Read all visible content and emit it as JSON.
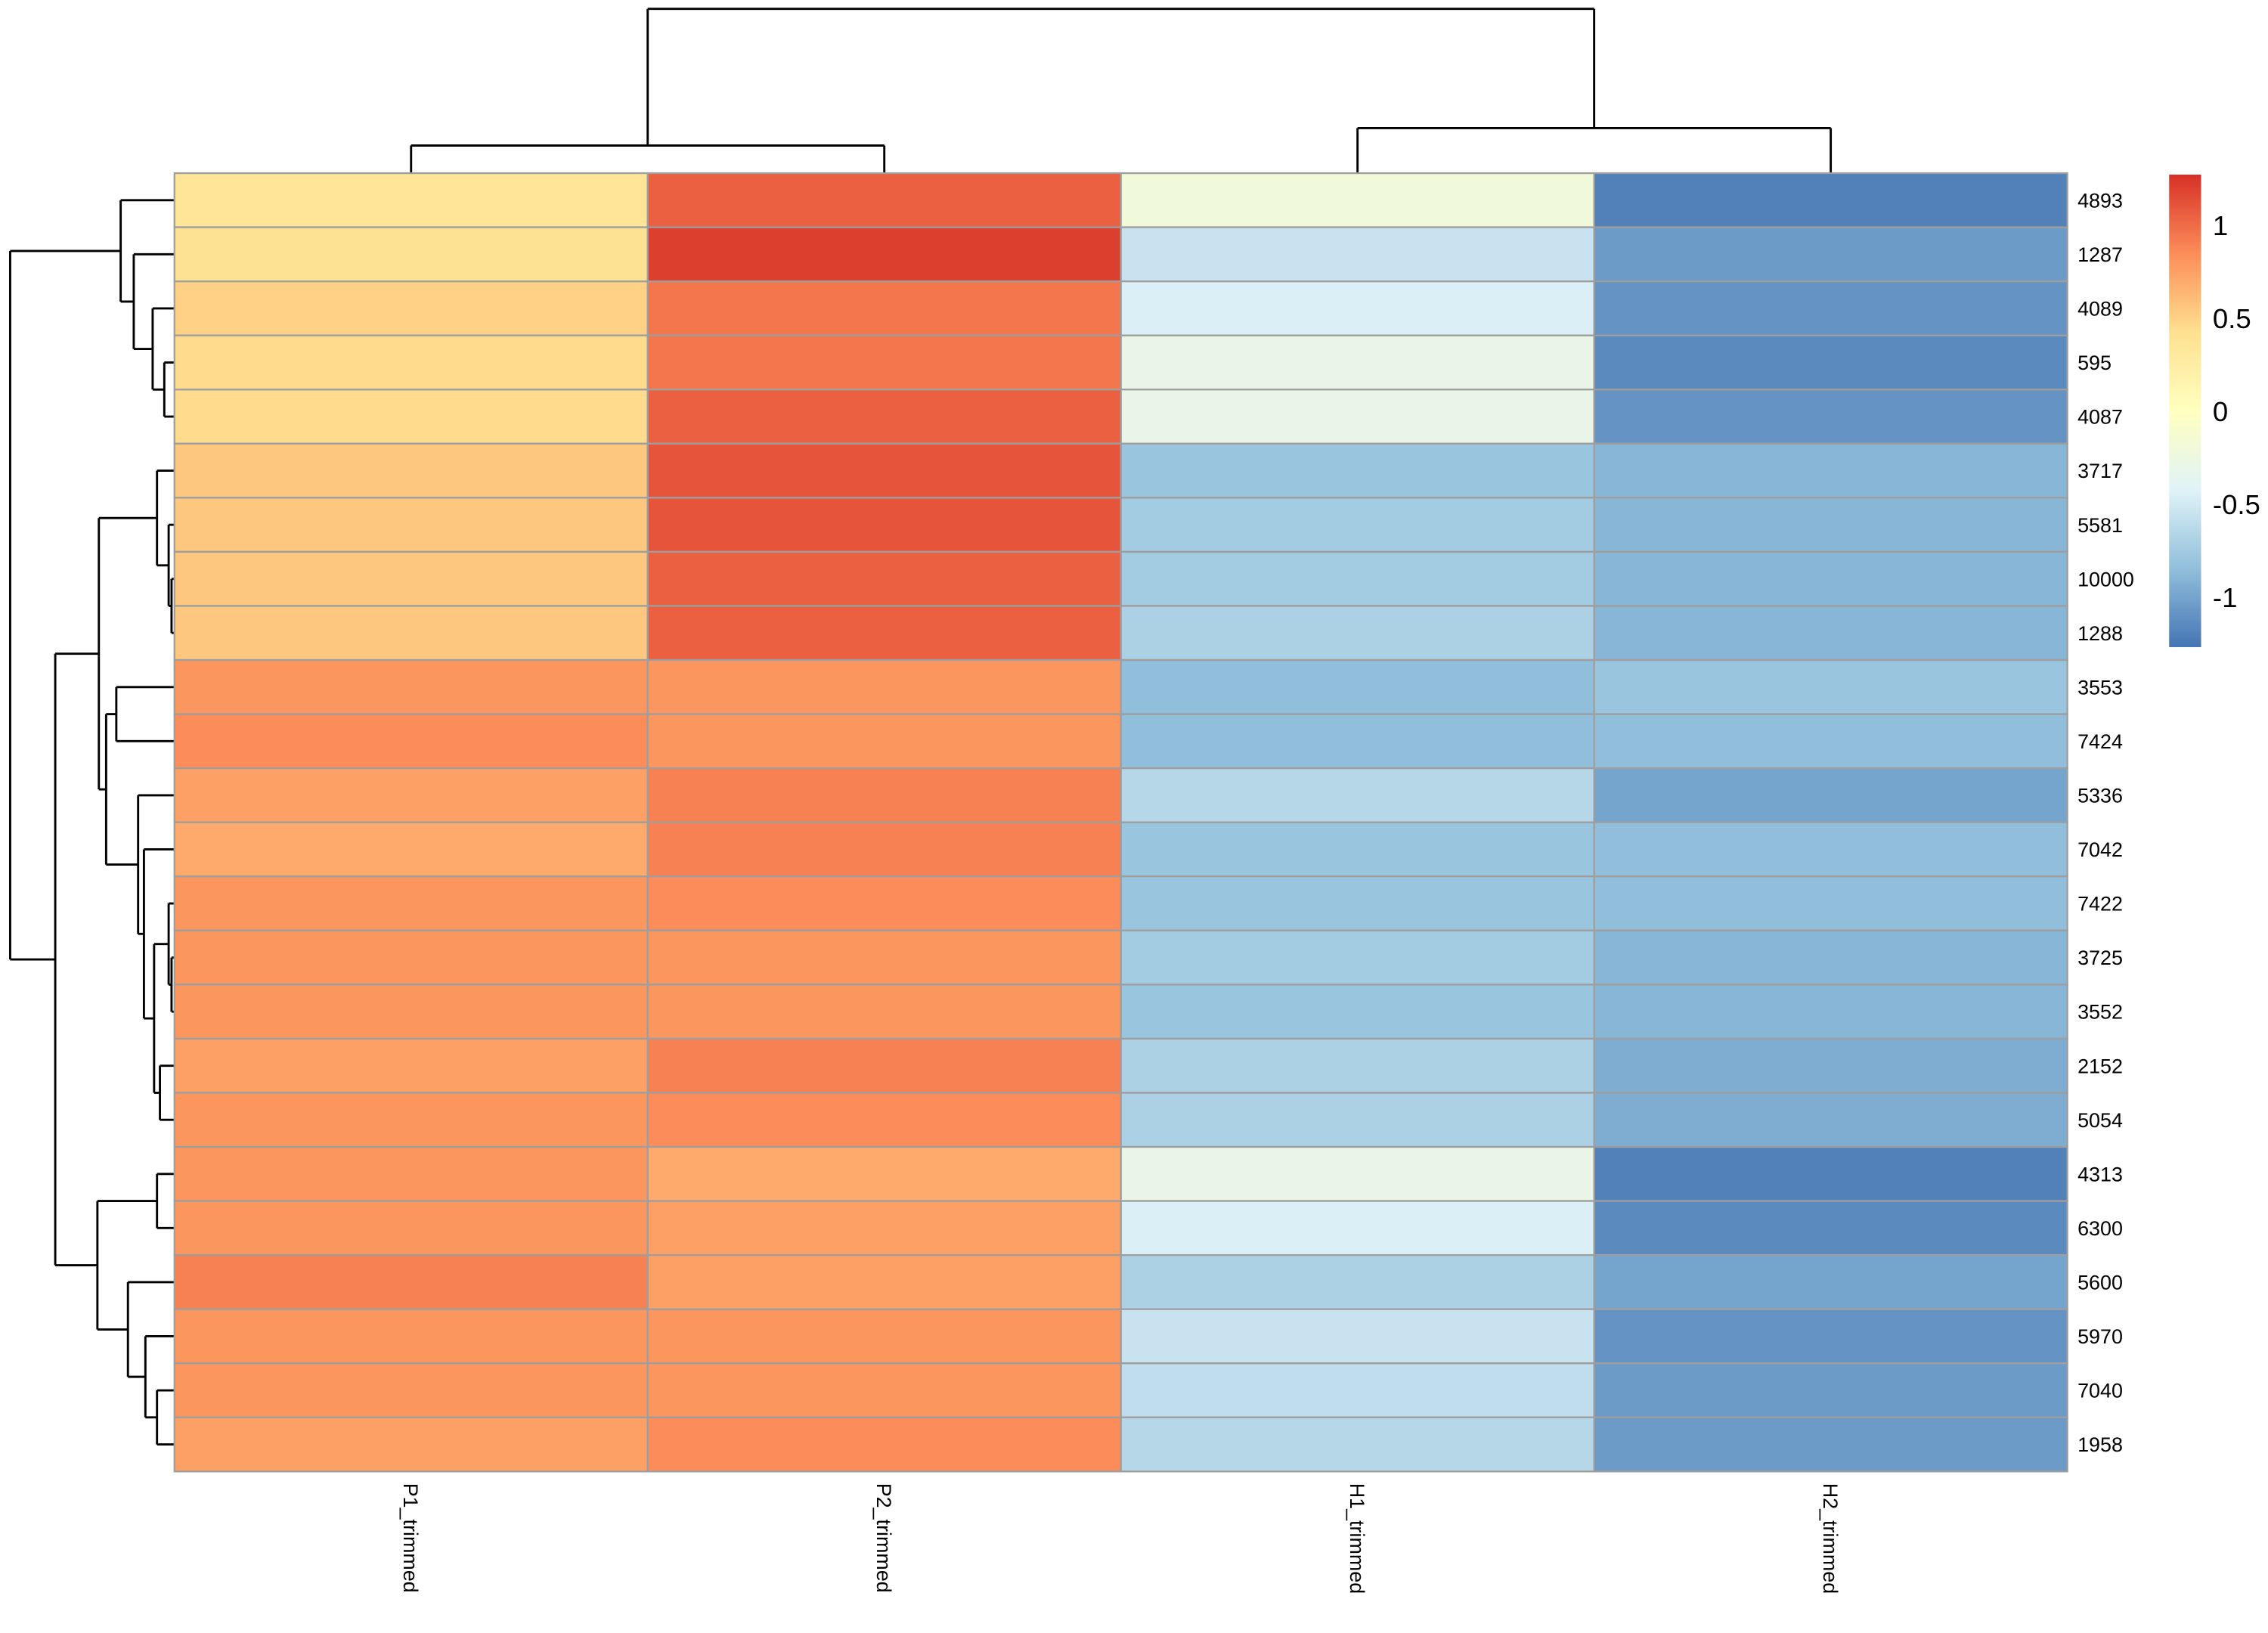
{
  "chart_data": {
    "type": "heatmap",
    "title": "",
    "columns": [
      "P1_trimmed",
      "P2_trimmed",
      "H1_trimmed",
      "H2_trimmed"
    ],
    "rows": [
      "4893",
      "1287",
      "4089",
      "595",
      "4087",
      "3717",
      "5581",
      "10000",
      "1288",
      "3553",
      "7424",
      "5336",
      "7042",
      "7422",
      "3725",
      "3552",
      "2152",
      "5054",
      "4313",
      "6300",
      "5600",
      "5970",
      "7040",
      "1958"
    ],
    "values": [
      [
        0.35,
        1.05,
        -0.2,
        -1.2
      ],
      [
        0.4,
        1.2,
        -0.55,
        -1.05
      ],
      [
        0.5,
        0.95,
        -0.45,
        -1.1
      ],
      [
        0.45,
        0.95,
        -0.3,
        -1.15
      ],
      [
        0.45,
        1.05,
        -0.3,
        -1.1
      ],
      [
        0.55,
        1.1,
        -0.8,
        -0.9
      ],
      [
        0.55,
        1.1,
        -0.75,
        -0.9
      ],
      [
        0.55,
        1.05,
        -0.75,
        -0.9
      ],
      [
        0.55,
        1.05,
        -0.7,
        -0.9
      ],
      [
        0.8,
        0.8,
        -0.85,
        -0.8
      ],
      [
        0.85,
        0.8,
        -0.85,
        -0.85
      ],
      [
        0.75,
        0.9,
        -0.65,
        -1.0
      ],
      [
        0.7,
        0.9,
        -0.8,
        -0.85
      ],
      [
        0.8,
        0.85,
        -0.8,
        -0.85
      ],
      [
        0.8,
        0.8,
        -0.75,
        -0.9
      ],
      [
        0.8,
        0.8,
        -0.8,
        -0.9
      ],
      [
        0.75,
        0.9,
        -0.7,
        -0.95
      ],
      [
        0.8,
        0.85,
        -0.7,
        -0.95
      ],
      [
        0.8,
        0.7,
        -0.3,
        -1.2
      ],
      [
        0.8,
        0.75,
        -0.45,
        -1.15
      ],
      [
        0.9,
        0.75,
        -0.7,
        -1.0
      ],
      [
        0.8,
        0.8,
        -0.55,
        -1.1
      ],
      [
        0.8,
        0.8,
        -0.6,
        -1.05
      ],
      [
        0.75,
        0.85,
        -0.65,
        -1.05
      ]
    ],
    "color_scale": {
      "range": [
        -1.27,
        1.27
      ],
      "colors": [
        "#4575B4",
        "#91BFDB",
        "#E0F3F8",
        "#FFFFBF",
        "#FEE090",
        "#FC8D59",
        "#D73027"
      ],
      "ticks": [
        1,
        0.5,
        0,
        -0.5,
        -1
      ],
      "tick_labels": [
        "1",
        "0.5",
        "0",
        "-0.5",
        "-1"
      ]
    },
    "cell_border_color": "#9E9E9E",
    "row_dendrogram": true,
    "column_dendrogram": true
  }
}
